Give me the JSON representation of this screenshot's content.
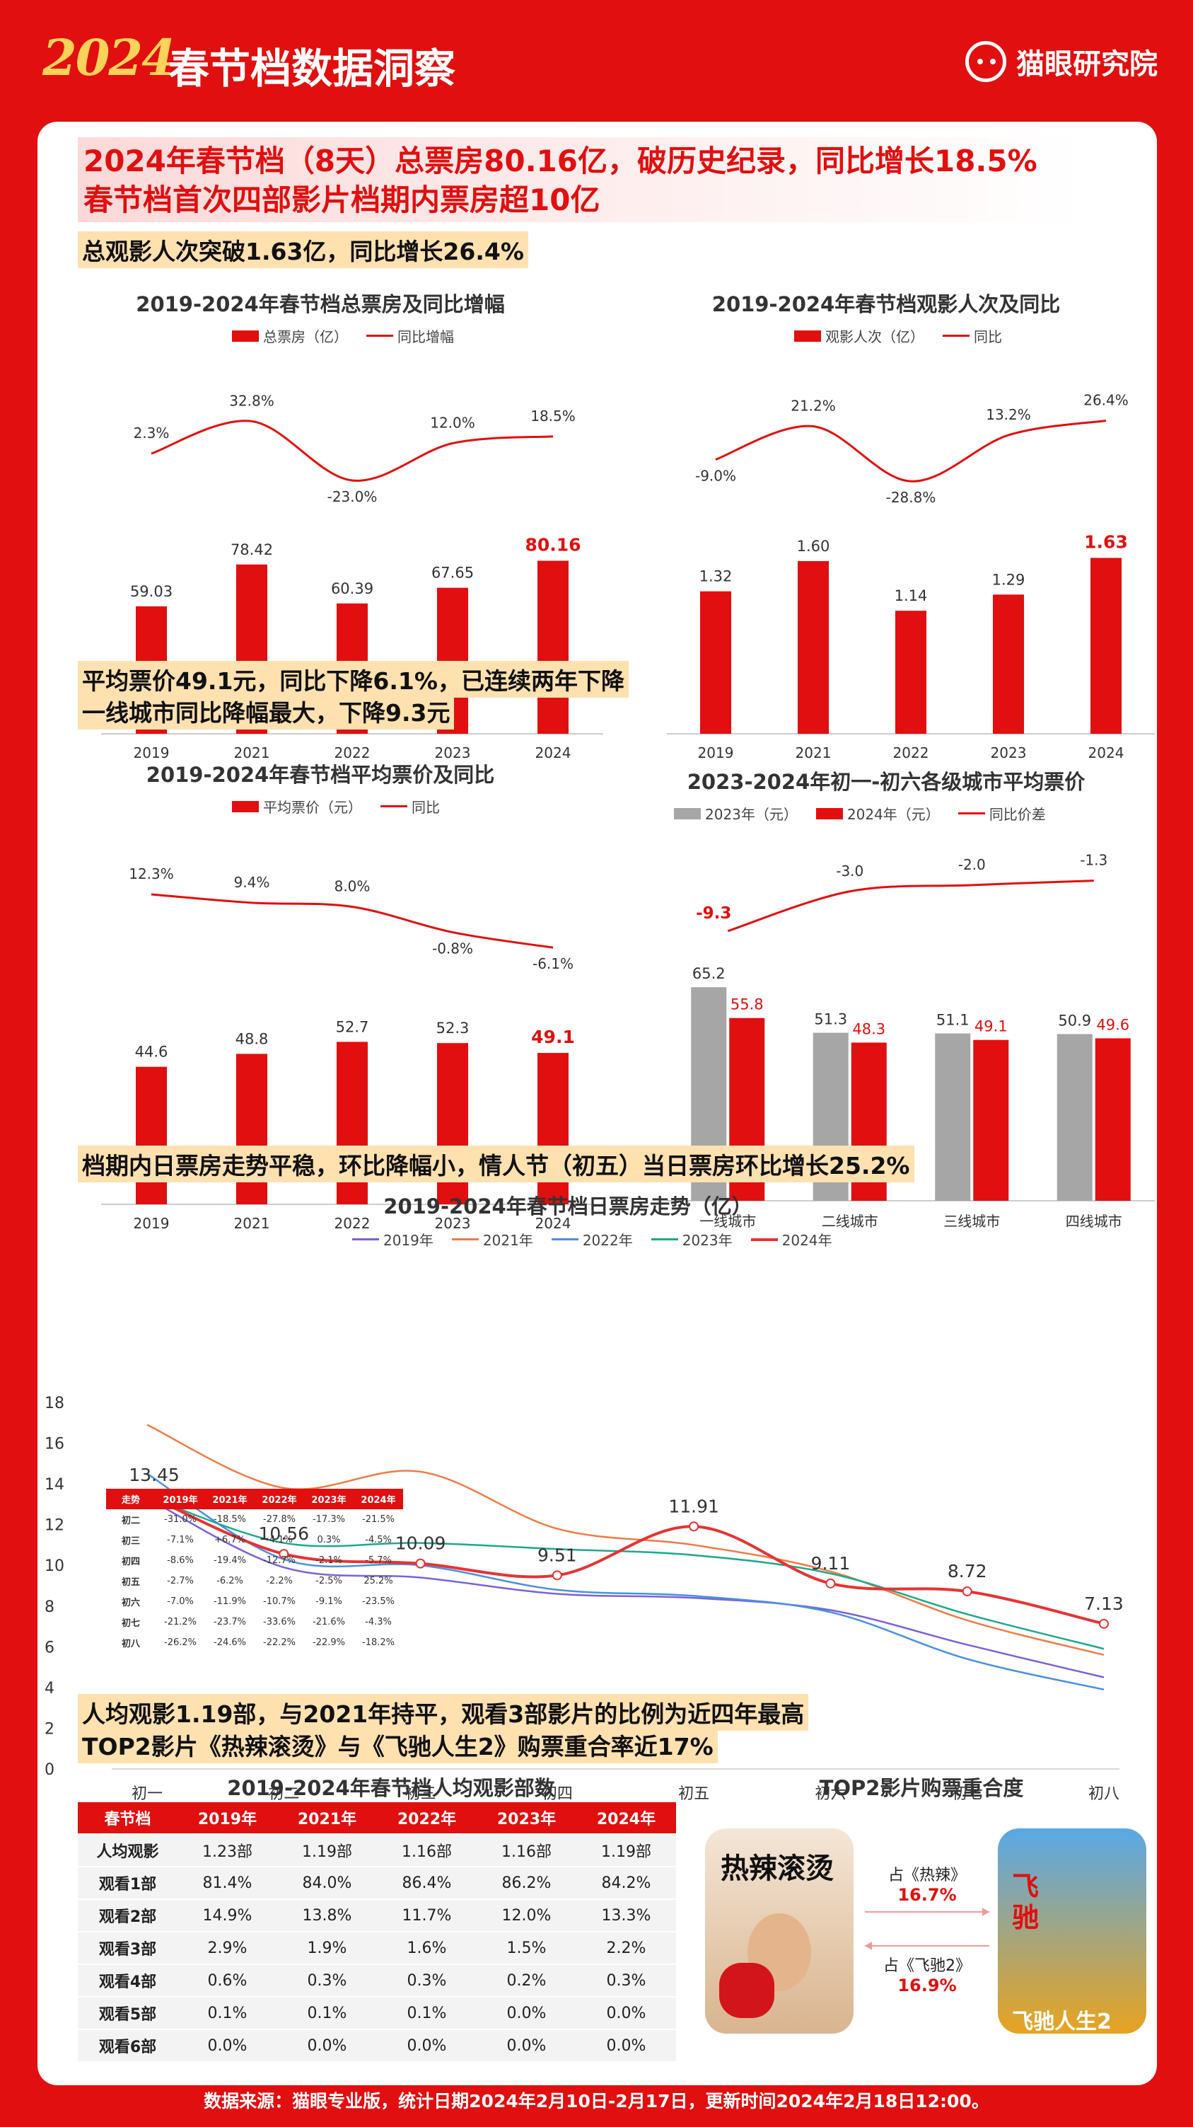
{
  "header": {
    "year": "2024",
    "title": "春节档数据洞察",
    "brand": "猫眼研究院"
  },
  "headline": {
    "line1": "2024年春节档（8天）总票房80.16亿，破历史纪录，同比增长18.5%",
    "line2": "春节档首次四部影片档期内票房超10亿"
  },
  "sections": {
    "s1": "总观影人次突破1.63亿，同比增长26.4%",
    "s2a": "平均票价49.1元，同比下降6.1%，已连续两年下降",
    "s2b": "一线城市同比降幅最大，下降9.3元",
    "s3": "档期内日票房走势平稳，环比降幅小，情人节（初五）当日票房环比增长25.2%",
    "s4a": "人均观影1.19部，与2021年持平，观看3部影片的比例为近四年最高",
    "s4b": "TOP2影片《热辣滚烫》与《飞驰人生2》购票重合率近17%"
  },
  "colors": {
    "red": "#e10f0f",
    "gray": "#a6a6a6"
  },
  "chart_data": [
    {
      "type": "bar",
      "title": "2019-2024年春节档总票房及同比增幅",
      "categories": [
        "2019",
        "2021",
        "2022",
        "2023",
        "2024"
      ],
      "series": [
        {
          "name": "总票房（亿）",
          "values": [
            59.03,
            78.42,
            60.39,
            67.65,
            80.16
          ]
        },
        {
          "name": "同比增幅",
          "values": [
            2.3,
            32.8,
            -23.0,
            12.0,
            18.5
          ],
          "labels": [
            "2.3%",
            "32.8%",
            "-23.0%",
            "12.0%",
            "18.5%"
          ]
        }
      ],
      "value_labels": [
        "59.03",
        "78.42",
        "60.39",
        "67.65",
        "80.16"
      ]
    },
    {
      "type": "bar",
      "title": "2019-2024年春节档观影人次及同比",
      "categories": [
        "2019",
        "2021",
        "2022",
        "2023",
        "2024"
      ],
      "series": [
        {
          "name": "观影人次（亿）",
          "values": [
            1.32,
            1.6,
            1.14,
            1.29,
            1.63
          ]
        },
        {
          "name": "同比",
          "values": [
            -9.0,
            21.2,
            -28.8,
            13.2,
            26.4
          ],
          "labels": [
            "-9.0%",
            "21.2%",
            "-28.8%",
            "13.2%",
            "26.4%"
          ]
        }
      ],
      "value_labels": [
        "1.32",
        "1.60",
        "1.14",
        "1.29",
        "1.63"
      ]
    },
    {
      "type": "bar",
      "title": "2019-2024年春节档平均票价及同比",
      "categories": [
        "2019",
        "2021",
        "2022",
        "2023",
        "2024"
      ],
      "series": [
        {
          "name": "平均票价（元）",
          "values": [
            44.6,
            48.8,
            52.7,
            52.3,
            49.1
          ]
        },
        {
          "name": "同比",
          "values": [
            12.3,
            9.4,
            8.0,
            -0.8,
            -6.1
          ],
          "labels": [
            "12.3%",
            "9.4%",
            "8.0%",
            "-0.8%",
            "-6.1%"
          ]
        }
      ],
      "value_labels": [
        "44.6",
        "48.8",
        "52.7",
        "52.3",
        "49.1"
      ]
    },
    {
      "type": "bar",
      "title": "2023-2024年初一-初六各级城市平均票价",
      "categories": [
        "一线城市",
        "二线城市",
        "三线城市",
        "四线城市"
      ],
      "series": [
        {
          "name": "2023年（元）",
          "values": [
            65.2,
            51.3,
            51.1,
            50.9
          ]
        },
        {
          "name": "2024年（元）",
          "values": [
            55.8,
            48.3,
            49.1,
            49.6
          ]
        },
        {
          "name": "同比价差",
          "values": [
            -9.3,
            -3.0,
            -2.0,
            -1.3
          ],
          "labels": [
            "-9.3",
            "-3.0",
            "-2.0",
            "-1.3"
          ]
        }
      ]
    },
    {
      "type": "line",
      "title": "2019-2024年春节档日票房走势（亿）",
      "categories": [
        "初一",
        "初二",
        "初三",
        "初四",
        "初五",
        "初六",
        "初七",
        "初八"
      ],
      "ylim": [
        0,
        18
      ],
      "yticks": [
        "0",
        "2",
        "4",
        "6",
        "8",
        "10",
        "12",
        "14",
        "16",
        "18"
      ],
      "series": [
        {
          "name": "2019年",
          "values": [
            13.3,
            9.9,
            9.4,
            8.6,
            8.4,
            7.8,
            6.1,
            4.5
          ]
        },
        {
          "name": "2021年",
          "values": [
            16.9,
            13.8,
            14.6,
            11.8,
            11.0,
            9.7,
            7.3,
            5.6
          ]
        },
        {
          "name": "2022年",
          "values": [
            14.5,
            10.3,
            10.0,
            8.8,
            8.5,
            7.7,
            5.4,
            3.9
          ]
        },
        {
          "name": "2023年",
          "values": [
            13.4,
            11.1,
            11.1,
            10.8,
            10.5,
            9.6,
            7.6,
            5.9
          ]
        },
        {
          "name": "2024年",
          "values": [
            13.45,
            10.56,
            10.09,
            9.51,
            11.91,
            9.11,
            8.72,
            7.13
          ],
          "labels": [
            "13.45",
            "10.56",
            "10.09",
            "9.51",
            "11.91",
            "9.11",
            "8.72",
            "7.13"
          ]
        }
      ]
    }
  ],
  "mini_table": {
    "headers": [
      "走势",
      "2019年",
      "2021年",
      "2022年",
      "2023年",
      "2024年"
    ],
    "rows": [
      [
        "初二",
        "-31.0%",
        "-18.5%",
        "-27.8%",
        "-17.3%",
        "-21.5%"
      ],
      [
        "初三",
        "-7.1%",
        "+6.7%",
        "-4.1%",
        "0.3%",
        "-4.5%"
      ],
      [
        "初四",
        "-8.6%",
        "-19.4%",
        "-12.7%",
        "-2.1%",
        "-5.7%"
      ],
      [
        "初五",
        "-2.7%",
        "-6.2%",
        "-2.2%",
        "-2.5%",
        "25.2%"
      ],
      [
        "初六",
        "-7.0%",
        "-11.9%",
        "-10.7%",
        "-9.1%",
        "-23.5%"
      ],
      [
        "初七",
        "-21.2%",
        "-23.7%",
        "-33.6%",
        "-21.6%",
        "-4.3%"
      ],
      [
        "初八",
        "-26.2%",
        "-24.6%",
        "-22.2%",
        "-22.9%",
        "-18.2%"
      ]
    ]
  },
  "per_capita_table": {
    "title": "2019-2024年春节档人均观影部数",
    "headers": [
      "春节档",
      "2019年",
      "2021年",
      "2022年",
      "2023年",
      "2024年"
    ],
    "rows": [
      [
        "人均观影",
        "1.23部",
        "1.19部",
        "1.16部",
        "1.16部",
        "1.19部"
      ],
      [
        "观看1部",
        "81.4%",
        "84.0%",
        "86.4%",
        "86.2%",
        "84.2%"
      ],
      [
        "观看2部",
        "14.9%",
        "13.8%",
        "11.7%",
        "12.0%",
        "13.3%"
      ],
      [
        "观看3部",
        "2.9%",
        "1.9%",
        "1.6%",
        "1.5%",
        "2.2%"
      ],
      [
        "观看4部",
        "0.6%",
        "0.3%",
        "0.3%",
        "0.2%",
        "0.3%"
      ],
      [
        "观看5部",
        "0.1%",
        "0.1%",
        "0.1%",
        "0.0%",
        "0.0%"
      ],
      [
        "观看6部",
        "0.0%",
        "0.0%",
        "0.0%",
        "0.0%",
        "0.0%"
      ]
    ]
  },
  "overlap": {
    "title": "TOP2影片购票重合度",
    "a_label": "占《热辣》",
    "a_value": "16.7%",
    "b_label": "占《飞驰2》",
    "b_value": "16.9%",
    "poster_a": "热辣滚烫",
    "poster_b": "飞驰人生2"
  },
  "footer": "数据来源：猫眼专业版，统计日期2024年2月10日-2月17日，更新时间2024年2月18日12:00。"
}
